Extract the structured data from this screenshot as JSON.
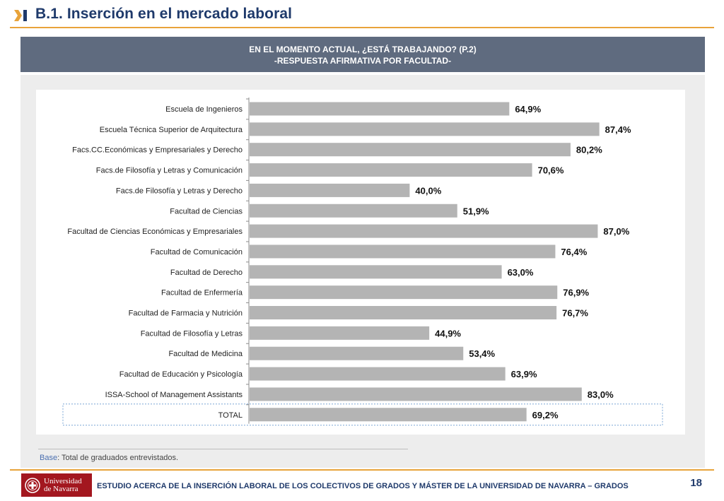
{
  "header": {
    "section_title": "B.1. Inserción en el mercado laboral",
    "accent_color": "#e8a33a",
    "title_color": "#1f3a6b"
  },
  "banner": {
    "line1": "EN EL MOMENTO ACTUAL, ¿ESTÁ TRABAJANDO? (P.2)",
    "line2": "-RESPUESTA AFIRMATIVA POR FACULTAD-",
    "background_color": "#5f6b7f"
  },
  "chart_data": {
    "type": "bar",
    "orientation": "horizontal",
    "categories": [
      "Escuela de Ingenieros",
      "Escuela Técnica Superior de Arquitectura",
      "Facs.CC.Económicas y Empresariales y Derecho",
      "Facs.de Filosofía y Letras y Comunicación",
      "Facs.de Filosofía y Letras y Derecho",
      "Facultad de Ciencias",
      "Facultad de Ciencias Económicas y Empresariales",
      "Facultad de Comunicación",
      "Facultad de Derecho",
      "Facultad de Enfermería",
      "Facultad de Farmacia y Nutrición",
      "Facultad de Filosofía y Letras",
      "Facultad de Medicina",
      "Facultad de Educación y Psicología",
      "ISSA-School of Management Assistants",
      "TOTAL"
    ],
    "values": [
      64.9,
      87.4,
      80.2,
      70.6,
      40.0,
      51.9,
      87.0,
      76.4,
      63.0,
      76.9,
      76.7,
      44.9,
      53.4,
      63.9,
      83.0,
      69.2
    ],
    "value_labels": [
      "64,9%",
      "87,4%",
      "80,2%",
      "70,6%",
      "40,0%",
      "51,9%",
      "87,0%",
      "76,4%",
      "63,0%",
      "76,9%",
      "76,7%",
      "44,9%",
      "53,4%",
      "63,9%",
      "83,0%",
      "69,2%"
    ],
    "xlim": [
      0,
      100
    ],
    "bar_color": "#b4b4b4",
    "grid": false,
    "legend": "none",
    "highlighted_category": "TOTAL"
  },
  "base_note": {
    "label": "Base",
    "text": ": Total de graduados entrevistados."
  },
  "footer": {
    "logo_line1": "Universidad",
    "logo_line2": "de Navarra",
    "logo_color": "#a3171f",
    "study_title": "ESTUDIO ACERCA DE LA INSERCIÓN LABORAL DE LOS COLECTIVOS DE GRADOS Y MÁSTER DE LA UNIVERSIDAD DE NAVARRA – GRADOS",
    "page_number": "18"
  }
}
